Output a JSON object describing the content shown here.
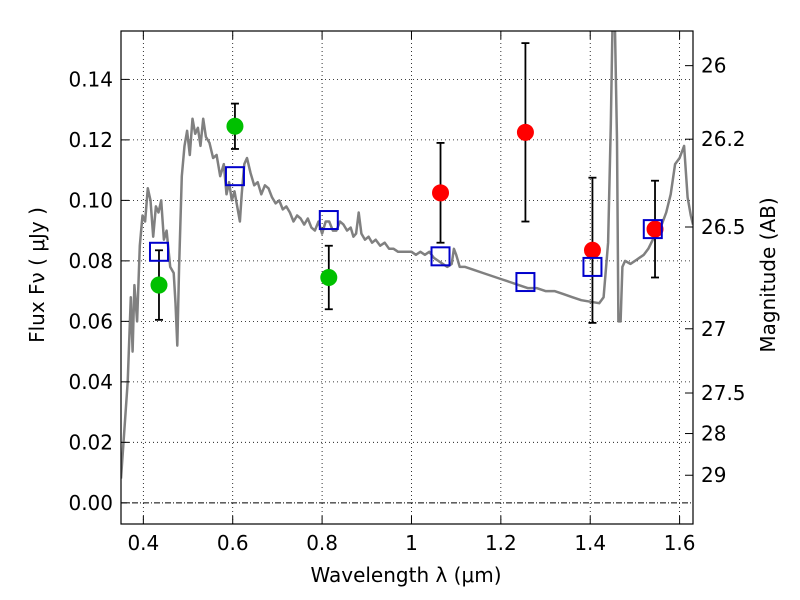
{
  "chart_data": {
    "type": "scatter",
    "xlabel": "Wavelength  λ (μm)",
    "ylabel": "Flux  Fν  ( μJy )",
    "y2label": "Magnitude (AB)",
    "xlim": [
      0.35,
      1.63
    ],
    "ylim": [
      -0.007,
      0.156
    ],
    "grid": true,
    "x_ticks": [
      {
        "value": 0.4,
        "label": "0.4"
      },
      {
        "value": 0.6,
        "label": "0.6"
      },
      {
        "value": 0.8,
        "label": "0.8"
      },
      {
        "value": 1.0,
        "label": "1"
      },
      {
        "value": 1.2,
        "label": "1.2"
      },
      {
        "value": 1.4,
        "label": "1.4"
      },
      {
        "value": 1.6,
        "label": "1.6"
      }
    ],
    "y_ticks": [
      {
        "value": 0.0,
        "label": "0.00"
      },
      {
        "value": 0.02,
        "label": "0.02"
      },
      {
        "value": 0.04,
        "label": "0.04"
      },
      {
        "value": 0.06,
        "label": "0.06"
      },
      {
        "value": 0.08,
        "label": "0.08"
      },
      {
        "value": 0.1,
        "label": "0.10"
      },
      {
        "value": 0.12,
        "label": "0.12"
      },
      {
        "value": 0.14,
        "label": "0.14"
      }
    ],
    "y2_ticks": [
      {
        "value": 26.0,
        "label": "26"
      },
      {
        "value": 26.2,
        "label": "26.2"
      },
      {
        "value": 26.5,
        "label": "26.5"
      },
      {
        "value": 27.0,
        "label": "27"
      },
      {
        "value": 27.5,
        "label": "27.5"
      },
      {
        "value": 28.0,
        "label": "28"
      },
      {
        "value": 29.0,
        "label": "29"
      }
    ],
    "colors": {
      "green": "#00c000",
      "red": "#ff0000",
      "model": "#808080",
      "box": "#0000cc",
      "errorbar": "#000000"
    },
    "series": [
      {
        "color": "green",
        "marker": "circle",
        "points": [
          {
            "x": 0.435,
            "y": 0.072,
            "yerr": 0.0115
          },
          {
            "x": 0.605,
            "y": 0.1245,
            "yerr": 0.0075
          },
          {
            "x": 0.815,
            "y": 0.0745,
            "yerr": 0.0105
          }
        ]
      },
      {
        "color": "red",
        "marker": "circle",
        "points": [
          {
            "x": 1.065,
            "y": 0.1025,
            "yerr": 0.0165
          },
          {
            "x": 1.255,
            "y": 0.1225,
            "yerr": 0.0295
          },
          {
            "x": 1.405,
            "y": 0.0835,
            "yerr": 0.024
          },
          {
            "x": 1.545,
            "y": 0.0905,
            "yerr": 0.016
          }
        ]
      },
      {
        "color": "box",
        "marker": "open-square",
        "points": [
          {
            "x": 0.435,
            "y": 0.083
          },
          {
            "x": 0.605,
            "y": 0.108
          },
          {
            "x": 0.815,
            "y": 0.0935
          },
          {
            "x": 1.065,
            "y": 0.0815
          },
          {
            "x": 1.255,
            "y": 0.073
          },
          {
            "x": 1.405,
            "y": 0.078
          },
          {
            "x": 1.54,
            "y": 0.0905
          }
        ]
      }
    ],
    "model_curve": {
      "color": "model",
      "points": [
        [
          0.35,
          0.008
        ],
        [
          0.365,
          0.04
        ],
        [
          0.372,
          0.068
        ],
        [
          0.376,
          0.05
        ],
        [
          0.38,
          0.072
        ],
        [
          0.386,
          0.06
        ],
        [
          0.392,
          0.085
        ],
        [
          0.398,
          0.095
        ],
        [
          0.404,
          0.093
        ],
        [
          0.41,
          0.104
        ],
        [
          0.416,
          0.1
        ],
        [
          0.422,
          0.088
        ],
        [
          0.428,
          0.098
        ],
        [
          0.434,
          0.096
        ],
        [
          0.44,
          0.1
        ],
        [
          0.446,
          0.087
        ],
        [
          0.452,
          0.09
        ],
        [
          0.46,
          0.078
        ],
        [
          0.468,
          0.076
        ],
        [
          0.472,
          0.066
        ],
        [
          0.476,
          0.052
        ],
        [
          0.48,
          0.078
        ],
        [
          0.486,
          0.108
        ],
        [
          0.492,
          0.118
        ],
        [
          0.498,
          0.123
        ],
        [
          0.504,
          0.115
        ],
        [
          0.51,
          0.127
        ],
        [
          0.516,
          0.122
        ],
        [
          0.522,
          0.124
        ],
        [
          0.528,
          0.118
        ],
        [
          0.534,
          0.127
        ],
        [
          0.54,
          0.121
        ],
        [
          0.548,
          0.119
        ],
        [
          0.556,
          0.114
        ],
        [
          0.564,
          0.115
        ],
        [
          0.572,
          0.108
        ],
        [
          0.58,
          0.112
        ],
        [
          0.586,
          0.102
        ],
        [
          0.592,
          0.106
        ],
        [
          0.598,
          0.1
        ],
        [
          0.604,
          0.103
        ],
        [
          0.61,
          0.098
        ],
        [
          0.616,
          0.093
        ],
        [
          0.62,
          0.102
        ],
        [
          0.626,
          0.112
        ],
        [
          0.632,
          0.114
        ],
        [
          0.64,
          0.109
        ],
        [
          0.648,
          0.105
        ],
        [
          0.656,
          0.106
        ],
        [
          0.664,
          0.102
        ],
        [
          0.672,
          0.105
        ],
        [
          0.68,
          0.104
        ],
        [
          0.688,
          0.101
        ],
        [
          0.696,
          0.099
        ],
        [
          0.704,
          0.1
        ],
        [
          0.712,
          0.097
        ],
        [
          0.72,
          0.098
        ],
        [
          0.728,
          0.096
        ],
        [
          0.736,
          0.093
        ],
        [
          0.744,
          0.095
        ],
        [
          0.752,
          0.094
        ],
        [
          0.76,
          0.092
        ],
        [
          0.768,
          0.094
        ],
        [
          0.776,
          0.091
        ],
        [
          0.784,
          0.09
        ],
        [
          0.792,
          0.093
        ],
        [
          0.8,
          0.089
        ],
        [
          0.808,
          0.093
        ],
        [
          0.816,
          0.093
        ],
        [
          0.824,
          0.09
        ],
        [
          0.832,
          0.09
        ],
        [
          0.84,
          0.093
        ],
        [
          0.848,
          0.092
        ],
        [
          0.856,
          0.09
        ],
        [
          0.864,
          0.091
        ],
        [
          0.87,
          0.088
        ],
        [
          0.876,
          0.089
        ],
        [
          0.882,
          0.096
        ],
        [
          0.888,
          0.089
        ],
        [
          0.896,
          0.087
        ],
        [
          0.904,
          0.088
        ],
        [
          0.912,
          0.086
        ],
        [
          0.92,
          0.087
        ],
        [
          0.93,
          0.085
        ],
        [
          0.94,
          0.086
        ],
        [
          0.95,
          0.084
        ],
        [
          0.96,
          0.084
        ],
        [
          0.97,
          0.083
        ],
        [
          0.98,
          0.083
        ],
        [
          0.99,
          0.083
        ],
        [
          1.0,
          0.083
        ],
        [
          1.01,
          0.082
        ],
        [
          1.02,
          0.083
        ],
        [
          1.03,
          0.082
        ],
        [
          1.04,
          0.083
        ],
        [
          1.05,
          0.081
        ],
        [
          1.06,
          0.08
        ],
        [
          1.07,
          0.079
        ],
        [
          1.08,
          0.078
        ],
        [
          1.09,
          0.079
        ],
        [
          1.095,
          0.084
        ],
        [
          1.1,
          0.082
        ],
        [
          1.108,
          0.078
        ],
        [
          1.12,
          0.078
        ],
        [
          1.14,
          0.077
        ],
        [
          1.16,
          0.076
        ],
        [
          1.18,
          0.075
        ],
        [
          1.2,
          0.074
        ],
        [
          1.22,
          0.073
        ],
        [
          1.24,
          0.072
        ],
        [
          1.26,
          0.071
        ],
        [
          1.28,
          0.071
        ],
        [
          1.3,
          0.07
        ],
        [
          1.32,
          0.07
        ],
        [
          1.34,
          0.069
        ],
        [
          1.36,
          0.068
        ],
        [
          1.38,
          0.067
        ],
        [
          1.4,
          0.0665
        ],
        [
          1.42,
          0.066
        ],
        [
          1.43,
          0.068
        ],
        [
          1.44,
          0.086
        ],
        [
          1.446,
          0.125
        ],
        [
          1.45,
          0.16
        ],
        [
          1.455,
          0.16
        ],
        [
          1.46,
          0.12
        ],
        [
          1.463,
          0.06
        ],
        [
          1.468,
          0.06
        ],
        [
          1.472,
          0.078
        ],
        [
          1.478,
          0.08
        ],
        [
          1.49,
          0.079
        ],
        [
          1.5,
          0.08
        ],
        [
          1.51,
          0.081
        ],
        [
          1.52,
          0.082
        ],
        [
          1.53,
          0.084
        ],
        [
          1.54,
          0.087
        ],
        [
          1.55,
          0.088
        ],
        [
          1.56,
          0.092
        ],
        [
          1.57,
          0.096
        ],
        [
          1.58,
          0.102
        ],
        [
          1.59,
          0.112
        ],
        [
          1.6,
          0.114
        ],
        [
          1.61,
          0.118
        ],
        [
          1.618,
          0.101
        ],
        [
          1.625,
          0.095
        ],
        [
          1.63,
          0.092
        ]
      ]
    }
  }
}
